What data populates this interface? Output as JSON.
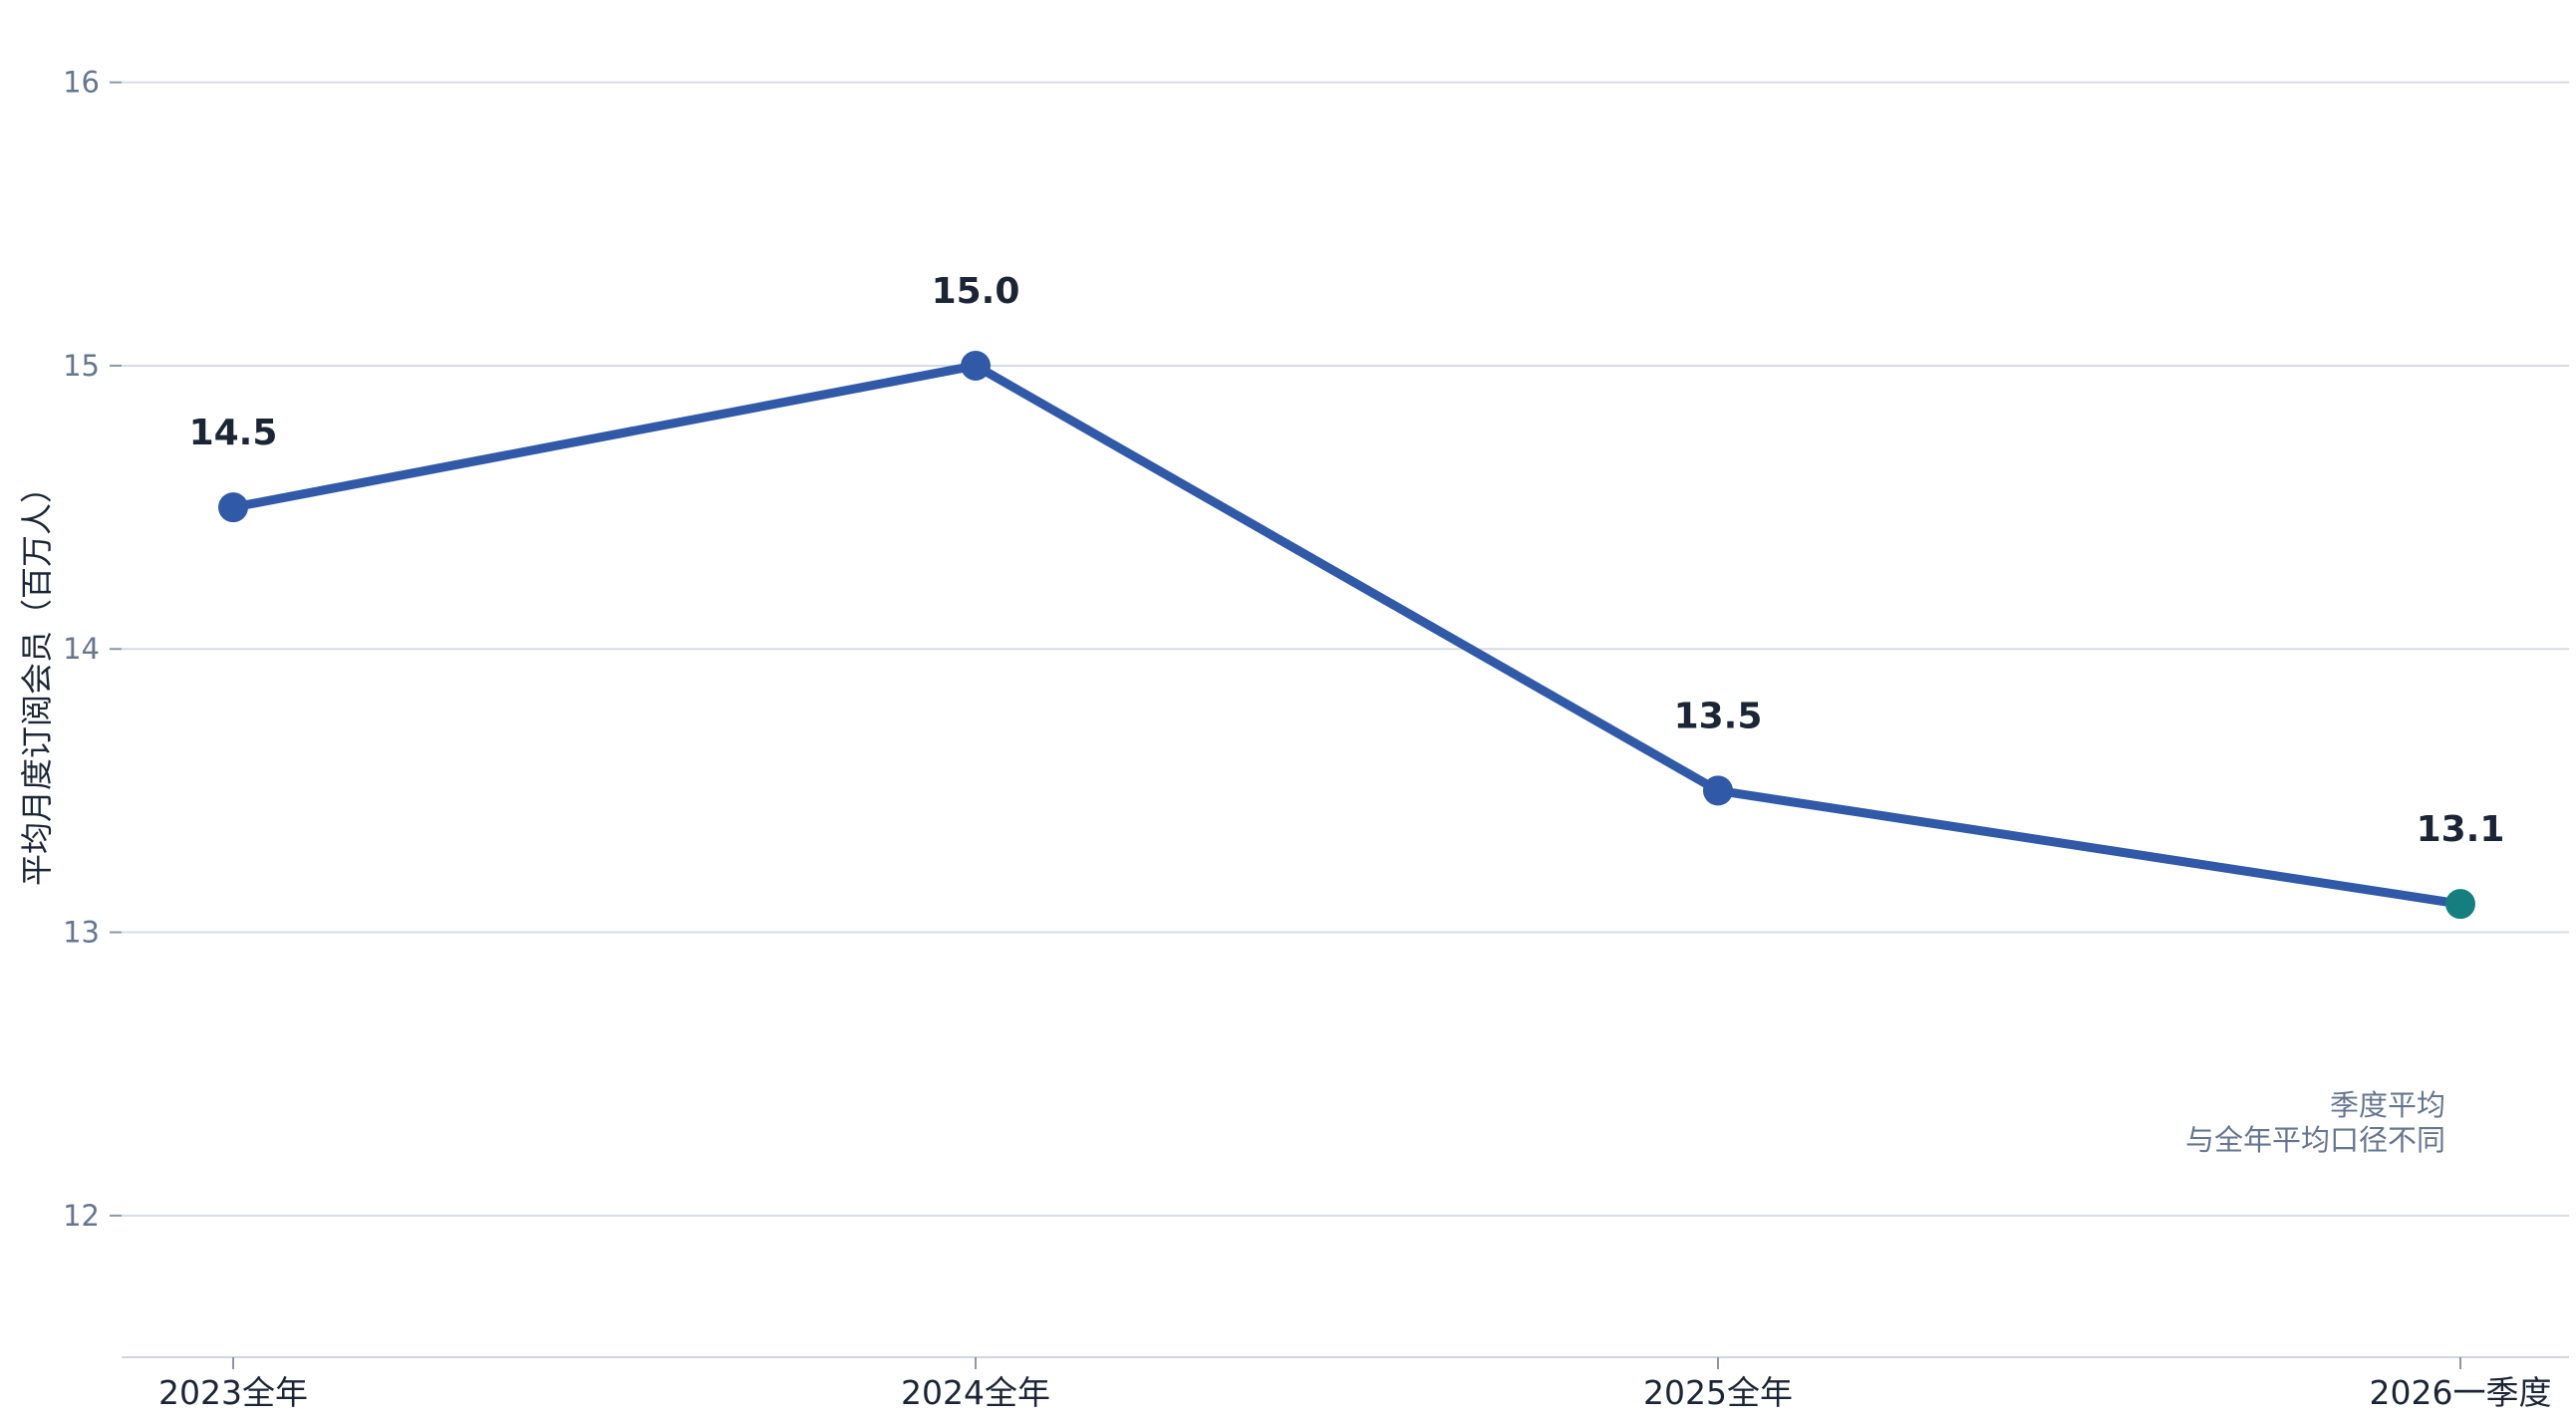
{
  "chart_data": {
    "type": "line",
    "categories": [
      "2023全年",
      "2024全年",
      "2025全年",
      "2026一季度"
    ],
    "series": [
      {
        "values": [
          14.5,
          15.0,
          13.5,
          13.1
        ],
        "color": "#3059a8",
        "point_colors": [
          "#3059a8",
          "#3059a8",
          "#3059a8",
          "#157e7e"
        ]
      }
    ],
    "data_labels": [
      "14.5",
      "15.0",
      "13.5",
      "13.1"
    ],
    "ylabel": "平均月度订阅会员（百万人）",
    "xlabel": "",
    "ylim": [
      11.5,
      16.15
    ],
    "yticks": [
      12,
      13,
      14,
      15,
      16
    ],
    "ytick_labels": [
      "12",
      "13",
      "14",
      "15",
      "16"
    ],
    "grid": true,
    "annotation": {
      "category": "2026一季度",
      "lines": [
        "季度平均",
        "与全年平均口径不同"
      ]
    }
  }
}
